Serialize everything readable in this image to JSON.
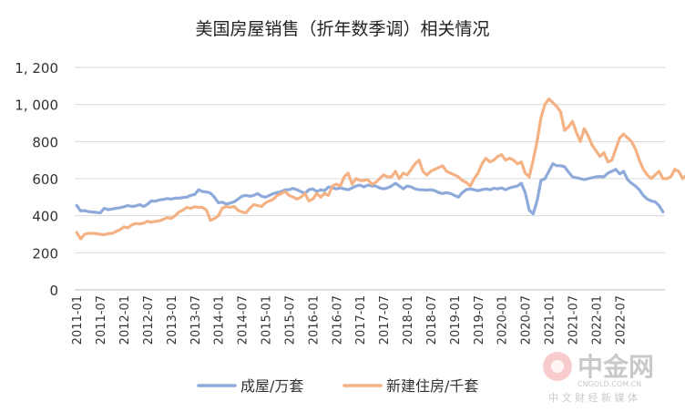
{
  "chart_data": {
    "type": "line",
    "title": "美国房屋销售（折年数季调）相关情况",
    "xlabel": "",
    "ylabel": "",
    "ylim": [
      0,
      1200
    ],
    "yticks": [
      "0",
      "200",
      "400",
      "600",
      "800",
      "1, 000",
      "1, 200"
    ],
    "ytick_values": [
      0,
      200,
      400,
      600,
      800,
      1000,
      1200
    ],
    "x_range": [
      "2011-01",
      "2022-12"
    ],
    "xticks": [
      "2011-01",
      "2011-07",
      "2012-01",
      "2012-07",
      "2013-01",
      "2013-07",
      "2014-01",
      "2014-07",
      "2015-01",
      "2015-07",
      "2016-01",
      "2016-07",
      "2017-01",
      "2017-07",
      "2018-01",
      "2018-07",
      "2019-01",
      "2019-07",
      "2020-01",
      "2020-07",
      "2021-01",
      "2021-07",
      "2022-01",
      "2022-07"
    ],
    "grid": true,
    "legend_position": "bottom",
    "series": [
      {
        "name": "成屋/万套",
        "color": "#8eaadb",
        "values": [
          456,
          426,
          428,
          422,
          420,
          418,
          415,
          440,
          433,
          436,
          440,
          443,
          448,
          455,
          450,
          453,
          460,
          450,
          462,
          480,
          478,
          485,
          488,
          493,
          490,
          495,
          495,
          498,
          500,
          510,
          515,
          540,
          530,
          528,
          522,
          500,
          470,
          473,
          463,
          468,
          475,
          490,
          505,
          510,
          505,
          510,
          520,
          505,
          500,
          510,
          520,
          525,
          530,
          540,
          540,
          548,
          540,
          530,
          520,
          540,
          545,
          530,
          540,
          535,
          555,
          550,
          545,
          550,
          545,
          540,
          550,
          560,
          565,
          555,
          565,
          560,
          560,
          550,
          545,
          550,
          560,
          575,
          560,
          545,
          560,
          555,
          545,
          540,
          540,
          538,
          540,
          535,
          525,
          520,
          525,
          520,
          510,
          500,
          525,
          540,
          545,
          540,
          535,
          540,
          545,
          540,
          548,
          545,
          550,
          540,
          550,
          555,
          560,
          575,
          525,
          430,
          410,
          480,
          590,
          600,
          640,
          680,
          670,
          670,
          665,
          635,
          610,
          605,
          600,
          595,
          600,
          605,
          610,
          612,
          610,
          630,
          640,
          650,
          625,
          640,
          595,
          575,
          560,
          540,
          510,
          490,
          480,
          475,
          455,
          420
        ]
      },
      {
        "name": "新建住房/千套",
        "color": "#f4b183",
        "values": [
          310,
          275,
          300,
          305,
          305,
          303,
          300,
          298,
          303,
          305,
          315,
          325,
          340,
          335,
          350,
          358,
          355,
          360,
          370,
          365,
          370,
          372,
          380,
          390,
          385,
          400,
          420,
          430,
          445,
          440,
          448,
          445,
          445,
          430,
          375,
          385,
          400,
          440,
          450,
          445,
          450,
          430,
          420,
          415,
          440,
          460,
          455,
          450,
          470,
          480,
          490,
          510,
          520,
          530,
          510,
          500,
          490,
          500,
          520,
          480,
          490,
          520,
          500,
          520,
          510,
          560,
          570,
          560,
          610,
          630,
          570,
          600,
          590,
          590,
          595,
          570,
          580,
          600,
          620,
          610,
          610,
          640,
          600,
          630,
          620,
          650,
          680,
          700,
          640,
          620,
          640,
          650,
          660,
          670,
          640,
          630,
          620,
          610,
          590,
          580,
          560,
          600,
          630,
          680,
          710,
          690,
          700,
          720,
          730,
          700,
          710,
          700,
          680,
          690,
          630,
          610,
          700,
          800,
          930,
          1000,
          1030,
          1010,
          990,
          960,
          860,
          880,
          910,
          850,
          800,
          870,
          830,
          780,
          750,
          720,
          740,
          690,
          700,
          760,
          820,
          840,
          820,
          800,
          760,
          700,
          650,
          620,
          600,
          620,
          640,
          600,
          600,
          610,
          650,
          640,
          600,
          620,
          640,
          645
        ]
      }
    ]
  },
  "watermark": {
    "name": "中金网",
    "url_text": "CNGOLD.COM.CN",
    "tagline": "中 文 财 经 新 媒 体"
  }
}
